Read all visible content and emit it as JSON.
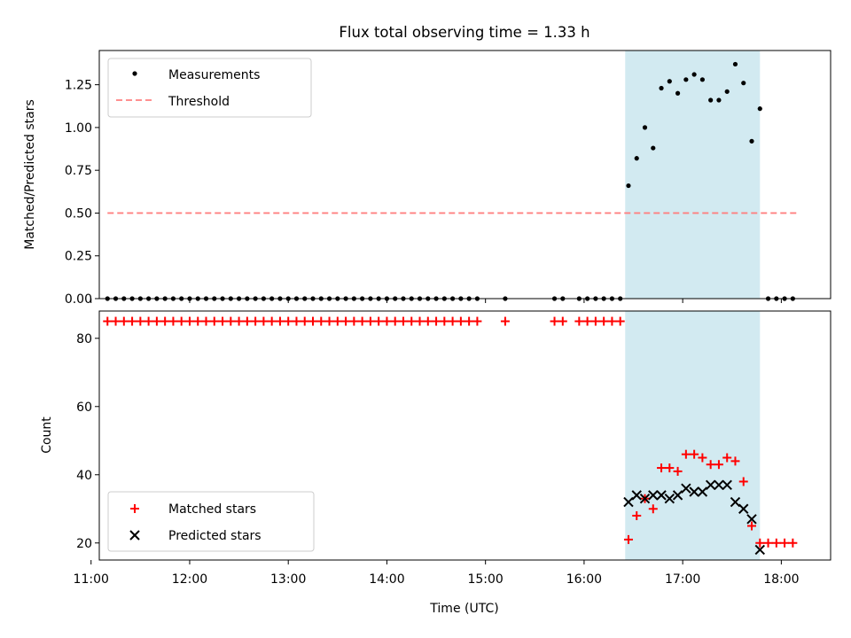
{
  "figure": {
    "title": "Flux total observing time = 1.33 h",
    "shade_color": "#add8e6",
    "shaded_x": [
      "16:25",
      "17:47"
    ]
  },
  "chart_data": [
    {
      "type": "scatter",
      "ylabel": "Matched/Predicted stars",
      "xlabel": "",
      "xlim": [
        "11:05",
        "18:30"
      ],
      "ylim": [
        0.0,
        1.45
      ],
      "yticks": [
        "0.00",
        "0.25",
        "0.50",
        "0.75",
        "1.00",
        "1.25"
      ],
      "legend": {
        "placement": "top-left",
        "entries": [
          "Measurements",
          "Threshold"
        ]
      },
      "threshold": {
        "name": "Threshold",
        "value": 0.5,
        "x": [
          "11:10",
          "18:10"
        ],
        "color": "#ff8080",
        "style": "dashed"
      },
      "series": [
        {
          "name": "Measurements",
          "color": "#000000",
          "marker": "dot",
          "x": [
            "11:10",
            "11:15",
            "11:20",
            "11:25",
            "11:30",
            "11:35",
            "11:40",
            "11:45",
            "11:50",
            "11:55",
            "12:00",
            "12:05",
            "12:10",
            "12:15",
            "12:20",
            "12:25",
            "12:30",
            "12:35",
            "12:40",
            "12:45",
            "12:50",
            "12:55",
            "13:00",
            "13:05",
            "13:10",
            "13:15",
            "13:20",
            "13:25",
            "13:30",
            "13:35",
            "13:40",
            "13:45",
            "13:50",
            "13:55",
            "14:00",
            "14:05",
            "14:10",
            "14:15",
            "14:20",
            "14:25",
            "14:30",
            "14:35",
            "14:40",
            "14:45",
            "14:50",
            "14:55",
            "15:12",
            "15:42",
            "15:47",
            "15:57",
            "16:02",
            "16:07",
            "16:12",
            "16:17",
            "16:22",
            "16:27",
            "16:32",
            "16:37",
            "16:42",
            "16:47",
            "16:52",
            "16:57",
            "17:02",
            "17:07",
            "17:12",
            "17:17",
            "17:22",
            "17:27",
            "17:32",
            "17:37",
            "17:42",
            "17:47",
            "17:52",
            "17:57",
            "18:02",
            "18:07"
          ],
          "y": [
            0,
            0,
            0,
            0,
            0,
            0,
            0,
            0,
            0,
            0,
            0,
            0,
            0,
            0,
            0,
            0,
            0,
            0,
            0,
            0,
            0,
            0,
            0,
            0,
            0,
            0,
            0,
            0,
            0,
            0,
            0,
            0,
            0,
            0,
            0,
            0,
            0,
            0,
            0,
            0,
            0,
            0,
            0,
            0,
            0,
            0,
            0,
            0,
            0,
            0,
            0,
            0,
            0,
            0,
            0,
            0.66,
            0.82,
            1.0,
            0.88,
            1.23,
            1.27,
            1.2,
            1.28,
            1.31,
            1.28,
            1.16,
            1.16,
            1.21,
            1.37,
            1.26,
            0.92,
            1.11,
            0,
            0,
            0,
            0
          ]
        }
      ]
    },
    {
      "type": "scatter",
      "ylabel": "Count",
      "xlabel": "Time (UTC)",
      "xlim": [
        "11:05",
        "18:30"
      ],
      "ylim": [
        15,
        88
      ],
      "yticks": [
        "20",
        "40",
        "60",
        "80"
      ],
      "xticks": [
        "11:00",
        "12:00",
        "13:00",
        "14:00",
        "15:00",
        "16:00",
        "17:00",
        "18:00"
      ],
      "legend": {
        "placement": "bottom-left",
        "entries": [
          "Matched stars",
          "Predicted stars"
        ]
      },
      "series": [
        {
          "name": "Matched stars",
          "color": "#ff0000",
          "marker": "plus",
          "x": [
            "11:10",
            "11:15",
            "11:20",
            "11:25",
            "11:30",
            "11:35",
            "11:40",
            "11:45",
            "11:50",
            "11:55",
            "12:00",
            "12:05",
            "12:10",
            "12:15",
            "12:20",
            "12:25",
            "12:30",
            "12:35",
            "12:40",
            "12:45",
            "12:50",
            "12:55",
            "13:00",
            "13:05",
            "13:10",
            "13:15",
            "13:20",
            "13:25",
            "13:30",
            "13:35",
            "13:40",
            "13:45",
            "13:50",
            "13:55",
            "14:00",
            "14:05",
            "14:10",
            "14:15",
            "14:20",
            "14:25",
            "14:30",
            "14:35",
            "14:40",
            "14:45",
            "14:50",
            "14:55",
            "15:12",
            "15:42",
            "15:47",
            "15:57",
            "16:02",
            "16:07",
            "16:12",
            "16:17",
            "16:22",
            "16:27",
            "16:32",
            "16:37",
            "16:42",
            "16:47",
            "16:52",
            "16:57",
            "17:02",
            "17:07",
            "17:12",
            "17:17",
            "17:22",
            "17:27",
            "17:32",
            "17:37",
            "17:42",
            "17:47",
            "17:52",
            "17:57",
            "18:02",
            "18:07"
          ],
          "y": [
            85,
            85,
            85,
            85,
            85,
            85,
            85,
            85,
            85,
            85,
            85,
            85,
            85,
            85,
            85,
            85,
            85,
            85,
            85,
            85,
            85,
            85,
            85,
            85,
            85,
            85,
            85,
            85,
            85,
            85,
            85,
            85,
            85,
            85,
            85,
            85,
            85,
            85,
            85,
            85,
            85,
            85,
            85,
            85,
            85,
            85,
            85,
            85,
            85,
            85,
            85,
            85,
            85,
            85,
            85,
            21,
            28,
            33,
            30,
            42,
            42,
            41,
            46,
            46,
            45,
            43,
            43,
            45,
            44,
            38,
            25,
            20,
            20,
            20,
            20,
            20
          ]
        },
        {
          "name": "Predicted stars",
          "color": "#000000",
          "marker": "x",
          "x": [
            "16:27",
            "16:32",
            "16:37",
            "16:42",
            "16:47",
            "16:52",
            "16:57",
            "17:02",
            "17:07",
            "17:12",
            "17:17",
            "17:22",
            "17:27",
            "17:32",
            "17:37",
            "17:42",
            "17:47"
          ],
          "y": [
            32,
            34,
            33,
            34,
            34,
            33,
            34,
            36,
            35,
            35,
            37,
            37,
            37,
            32,
            30,
            27,
            18
          ]
        }
      ]
    }
  ]
}
